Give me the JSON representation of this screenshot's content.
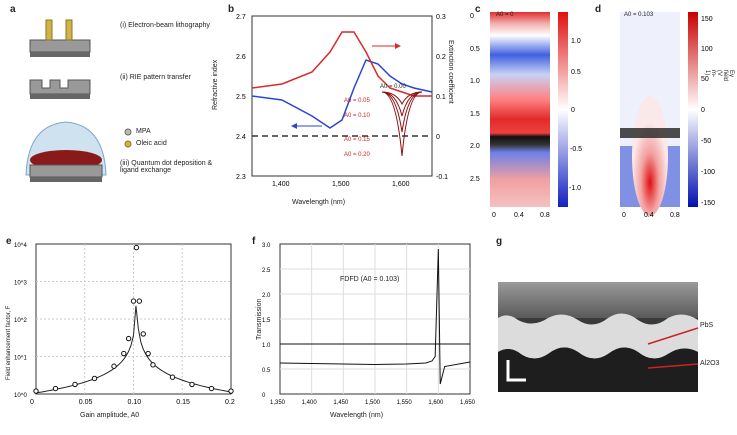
{
  "panels": {
    "a": {
      "letter": "a",
      "steps": [
        "(i) Electron-beam lithography",
        "(ii) RIE pattern transfer",
        "(iii) Quantum dot deposition & ligand exchange"
      ],
      "legend": [
        "MPA",
        "Oleic acid"
      ]
    },
    "b": {
      "letter": "b",
      "xlabel": "Wavelength (nm)",
      "ylabel_left": "Refractive index",
      "ylabel_right": "Extinction coefficient",
      "xticks": [
        "1,400",
        "1,500",
        "1,600"
      ],
      "yticks_left": [
        "2.3",
        "2.4",
        "2.5",
        "2.6",
        "2.7"
      ],
      "yticks_right": [
        "-0.1",
        "0",
        "0.1",
        "0.2",
        "0.3"
      ],
      "annotations": [
        "A0 = 0.05",
        "A0 = 0.10",
        "A0 = 0.15",
        "A0 = 0.20",
        "A0 = 0.00"
      ]
    },
    "c": {
      "letter": "c",
      "label": "A0 = 0",
      "yticks": [
        "0",
        "0.5",
        "1.0",
        "1.5",
        "2.0",
        "2.5"
      ],
      "xticks": [
        "0",
        "0.4",
        "0.8"
      ],
      "colorbar_ticks": [
        "1.0",
        "0.5",
        "0",
        "-0.5",
        "-1.0"
      ]
    },
    "d": {
      "letter": "d",
      "label": "A0 = 0.103",
      "xticks": [
        "0",
        "0.4",
        "0.8"
      ],
      "colorbar_ticks": [
        "150",
        "100",
        "50",
        "0",
        "-50",
        "-100",
        "-150"
      ],
      "colorbar_label": "Ey field (V m-1)"
    },
    "e": {
      "letter": "e",
      "xlabel": "Gain amplitude, A0",
      "ylabel": "Field enhancement factor, F",
      "xticks": [
        "0",
        "0.05",
        "0.10",
        "0.15",
        "0.2"
      ],
      "yticks": [
        "10^0",
        "10^1",
        "10^2",
        "10^3",
        "10^4"
      ]
    },
    "f": {
      "letter": "f",
      "xlabel": "Wavelength (nm)",
      "ylabel": "Transmission",
      "label": "FDFD (A0 = 0.103)",
      "xticks": [
        "1,350",
        "1,400",
        "1,450",
        "1,500",
        "1,550",
        "1,600",
        "1,650"
      ],
      "yticks": [
        "0",
        "0.5",
        "1.0",
        "1.5",
        "2.0",
        "2.5",
        "3.0"
      ]
    },
    "g": {
      "letter": "g",
      "labels": [
        "PbS",
        "Al2O3"
      ]
    }
  },
  "chart_data": [
    {
      "type": "line",
      "panel": "b",
      "x": [
        1350,
        1400,
        1450,
        1480,
        1500,
        1520,
        1540,
        1560,
        1580,
        1600,
        1620,
        1650
      ],
      "series": [
        {
          "name": "Refractive index",
          "values": [
            2.5,
            2.49,
            2.45,
            2.42,
            2.44,
            2.52,
            2.59,
            2.58,
            2.55,
            2.53,
            2.52,
            2.51
          ]
        },
        {
          "name": "Extinction coefficient",
          "values": [
            0.12,
            0.13,
            0.16,
            0.21,
            0.26,
            0.26,
            0.21,
            0.15,
            0.12,
            0.11,
            0.1,
            0.1
          ]
        }
      ],
      "xlim": [
        1350,
        1650
      ],
      "ylim_left": [
        2.3,
        2.7
      ],
      "ylim_right": [
        -0.1,
        0.3
      ]
    },
    {
      "type": "scatter",
      "panel": "e",
      "x": [
        0.0,
        0.02,
        0.04,
        0.06,
        0.08,
        0.09,
        0.095,
        0.1,
        0.103,
        0.106,
        0.11,
        0.115,
        0.12,
        0.14,
        0.16,
        0.18,
        0.2
      ],
      "values": [
        1.2,
        1.4,
        1.8,
        2.6,
        5.5,
        12,
        30,
        300,
        8000,
        300,
        40,
        12,
        6,
        2.8,
        1.8,
        1.4,
        1.2
      ],
      "xlim": [
        0,
        0.2
      ],
      "ylim": [
        1,
        10000
      ],
      "yscale": "log"
    },
    {
      "type": "line",
      "panel": "f",
      "x": [
        1350,
        1400,
        1450,
        1500,
        1550,
        1580,
        1590,
        1595,
        1600,
        1603,
        1610,
        1650
      ],
      "series": [
        {
          "name": "FDFD",
          "values": [
            0.62,
            0.61,
            0.6,
            0.59,
            0.6,
            0.62,
            0.66,
            0.75,
            2.9,
            0.2,
            0.55,
            0.64
          ]
        }
      ],
      "xlim": [
        1350,
        1650
      ],
      "ylim": [
        0,
        3.0
      ]
    }
  ]
}
